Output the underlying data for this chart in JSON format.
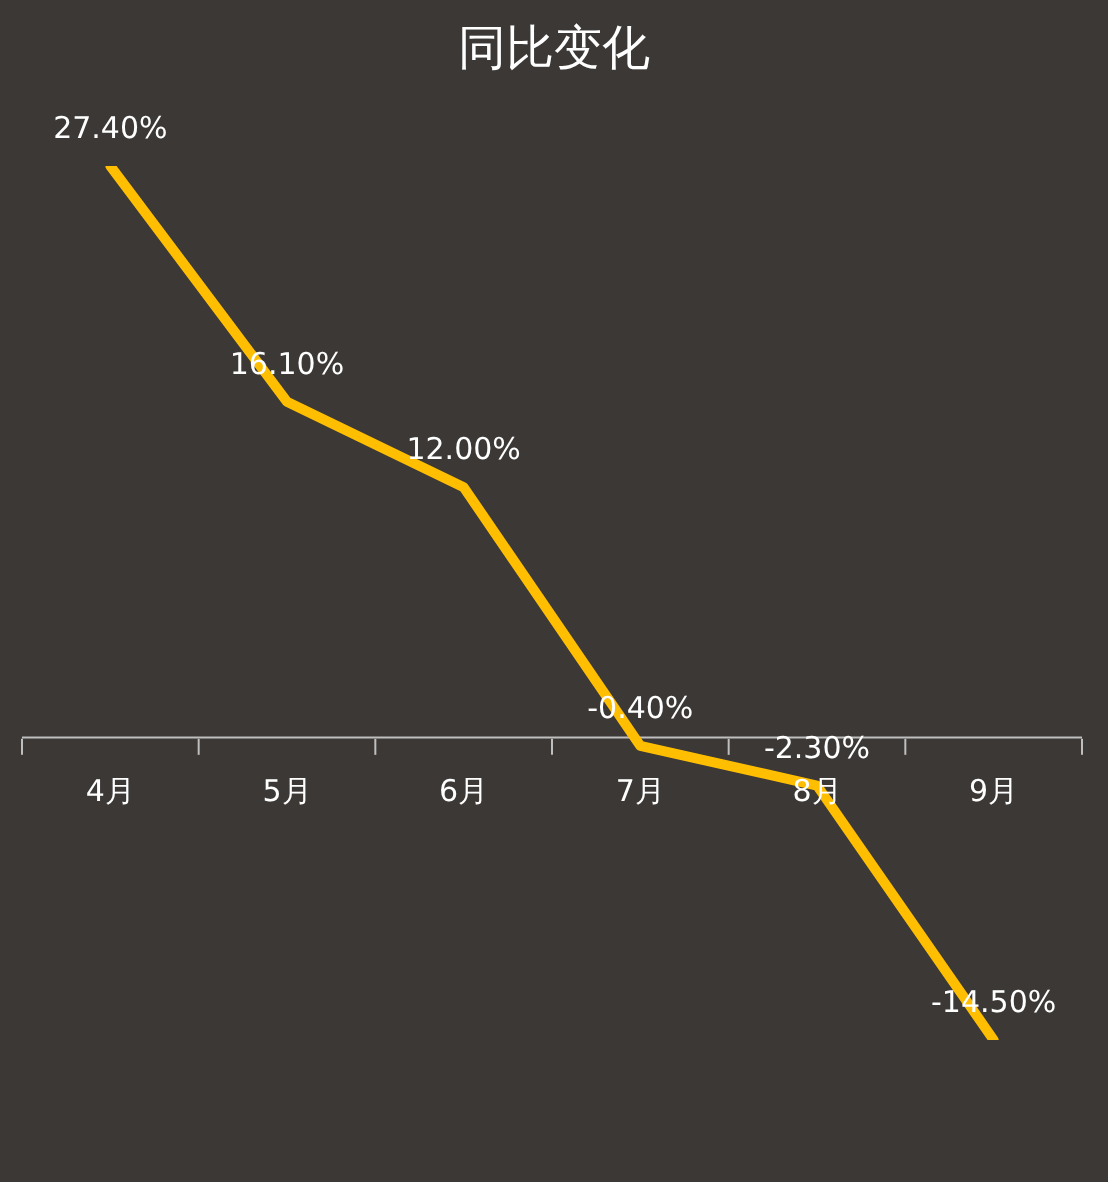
{
  "chart_data": {
    "type": "line",
    "title": "同比变化",
    "categories": [
      "4月",
      "5月",
      "6月",
      "7月",
      "8月",
      "9月"
    ],
    "series": [
      {
        "color": "#ffbf00",
        "values": [
          27.4,
          16.1,
          12.0,
          -0.4,
          -2.3,
          -14.5
        ],
        "value_labels": [
          "27.40%",
          "16.10%",
          "12.00%",
          "-0.40%",
          "-2.30%",
          "-14.50%"
        ]
      }
    ],
    "marker": "none",
    "tick_labels": "x"
  }
}
